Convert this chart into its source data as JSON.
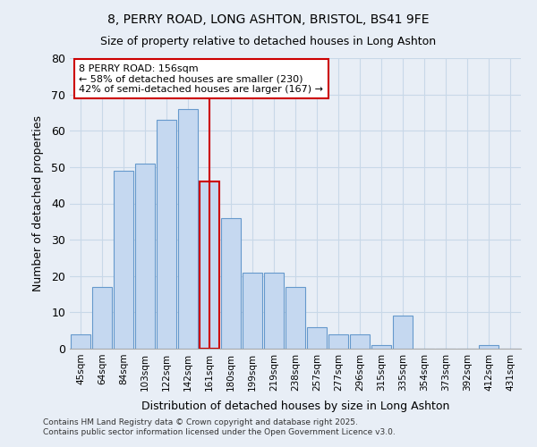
{
  "title1": "8, PERRY ROAD, LONG ASHTON, BRISTOL, BS41 9FE",
  "title2": "Size of property relative to detached houses in Long Ashton",
  "xlabel": "Distribution of detached houses by size in Long Ashton",
  "ylabel": "Number of detached properties",
  "bar_labels": [
    "45sqm",
    "64sqm",
    "84sqm",
    "103sqm",
    "122sqm",
    "142sqm",
    "161sqm",
    "180sqm",
    "199sqm",
    "219sqm",
    "238sqm",
    "257sqm",
    "277sqm",
    "296sqm",
    "315sqm",
    "335sqm",
    "354sqm",
    "373sqm",
    "392sqm",
    "412sqm",
    "431sqm"
  ],
  "bar_values": [
    4,
    17,
    49,
    51,
    63,
    66,
    46,
    36,
    21,
    21,
    17,
    6,
    4,
    4,
    1,
    9,
    0,
    0,
    0,
    1,
    0
  ],
  "bar_color": "#c5d8f0",
  "bar_edge_color": "#6699cc",
  "highlight_index": 6,
  "highlight_edge_color": "#cc0000",
  "vline_color": "#cc0000",
  "ylim": [
    0,
    80
  ],
  "yticks": [
    0,
    10,
    20,
    30,
    40,
    50,
    60,
    70,
    80
  ],
  "annotation_text": "8 PERRY ROAD: 156sqm\n← 58% of detached houses are smaller (230)\n42% of semi-detached houses are larger (167) →",
  "annotation_box_color": "#ffffff",
  "annotation_edge_color": "#cc0000",
  "footnote1": "Contains HM Land Registry data © Crown copyright and database right 2025.",
  "footnote2": "Contains public sector information licensed under the Open Government Licence v3.0.",
  "grid_color": "#c8d8e8",
  "background_color": "#e8eef6"
}
